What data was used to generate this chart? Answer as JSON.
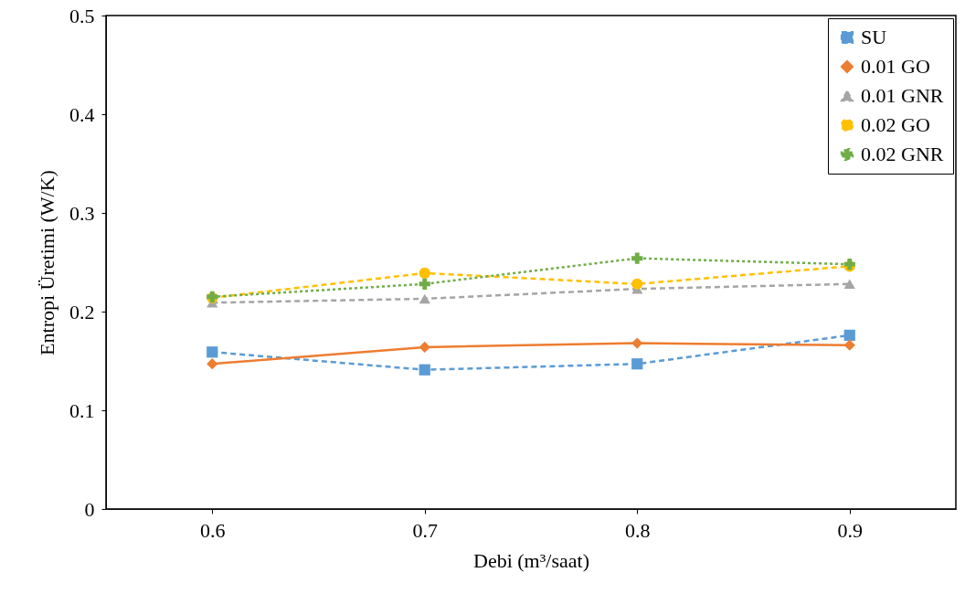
{
  "chart_data": {
    "type": "line",
    "xlabel": "Debi (m³/saat)",
    "ylabel": "Entropi Üretimi (W/K)",
    "x": [
      0.6,
      0.7,
      0.8,
      0.9
    ],
    "xlim": [
      0.55,
      0.95
    ],
    "xticks": [
      0.6,
      0.7,
      0.8,
      0.9
    ],
    "ylim": [
      0,
      0.5
    ],
    "yticks": [
      0,
      0.1,
      0.2,
      0.3,
      0.4,
      0.5
    ],
    "grid": false,
    "legend": "top right",
    "series": [
      {
        "name": "SU",
        "color": "#5b9bd5",
        "values": [
          0.159,
          0.141,
          0.147,
          0.176
        ],
        "marker": "square",
        "line_style": "dashed"
      },
      {
        "name": "0.01 GO",
        "color": "#ed7d31",
        "values": [
          0.147,
          0.164,
          0.168,
          0.166
        ],
        "marker": "diamond",
        "line_style": "solid"
      },
      {
        "name": "0.01 GNR",
        "color": "#a5a5a5",
        "values": [
          0.209,
          0.213,
          0.223,
          0.228
        ],
        "marker": "triangle",
        "line_style": "dashed"
      },
      {
        "name": "0.02 GO",
        "color": "#ffc000",
        "values": [
          0.214,
          0.239,
          0.228,
          0.246
        ],
        "marker": "circle",
        "line_style": "dashed"
      },
      {
        "name": "0.02 GNR",
        "color": "#70ad47",
        "values": [
          0.215,
          0.228,
          0.254,
          0.248
        ],
        "marker": "cross",
        "line_style": "dotted"
      }
    ]
  }
}
